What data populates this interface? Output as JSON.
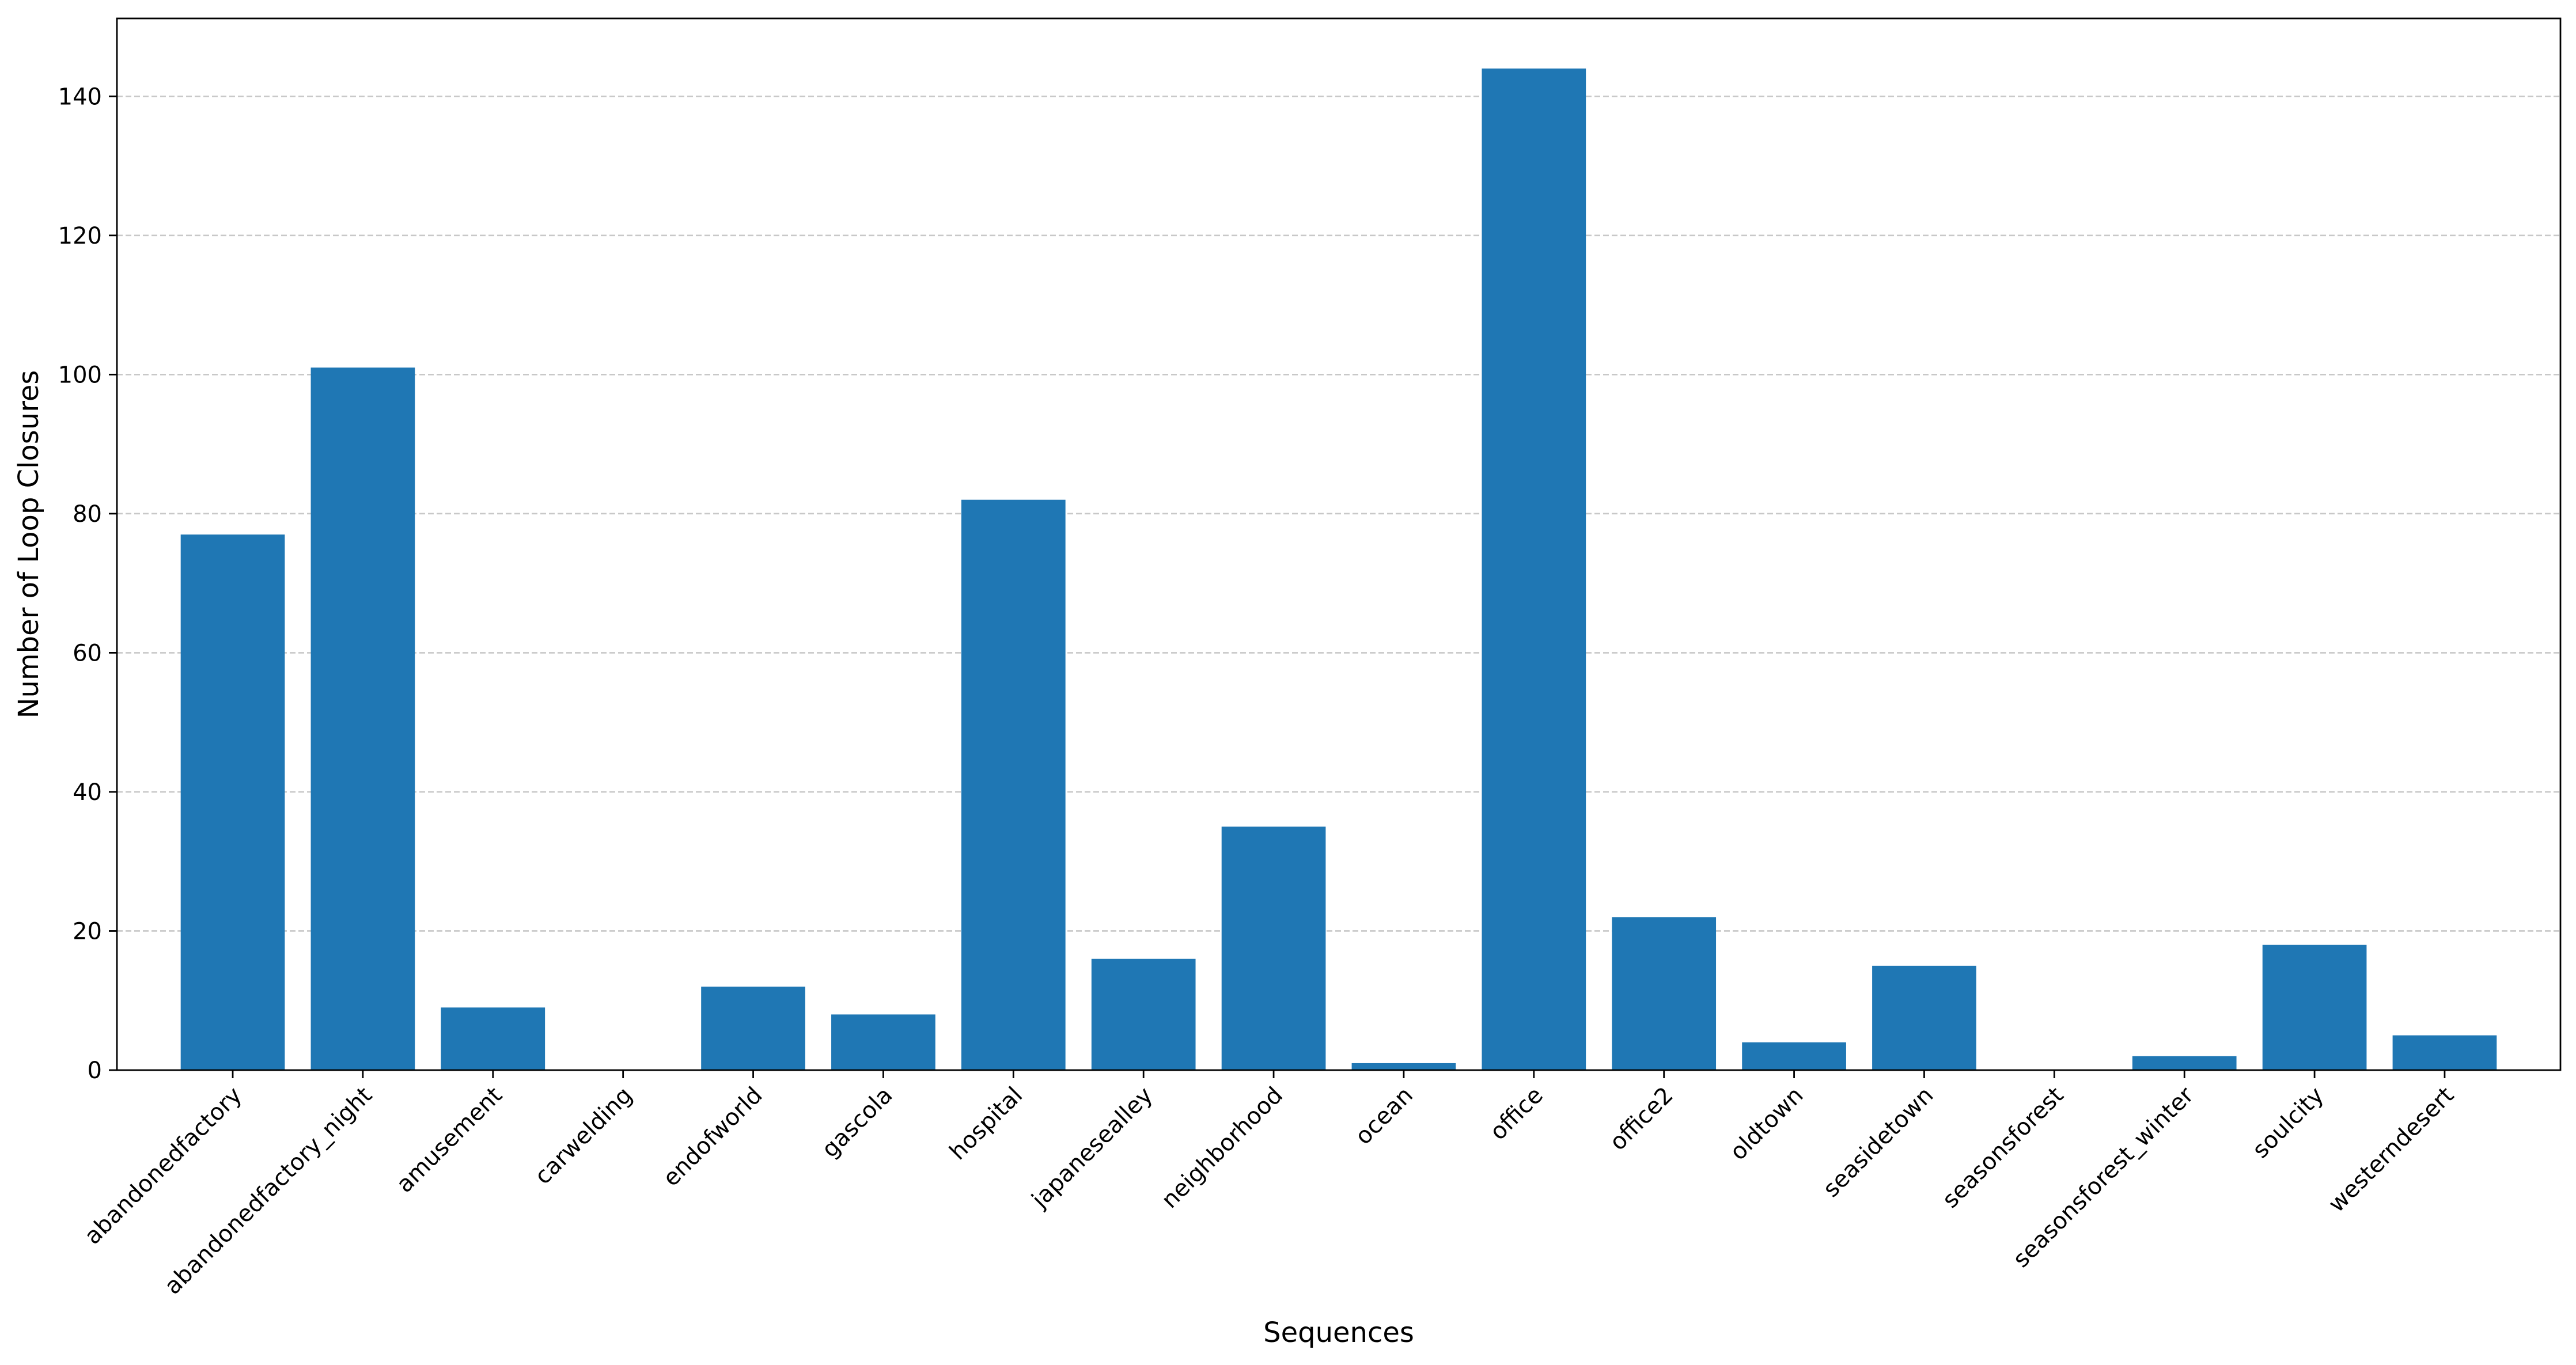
{
  "chart_data": {
    "type": "bar",
    "title": "",
    "xlabel": "Sequences",
    "ylabel": "Number of Loop Closures",
    "categories": [
      "abandonedfactory",
      "abandonedfactory_night",
      "amusement",
      "carwelding",
      "endofworld",
      "gascola",
      "hospital",
      "japanesealley",
      "neighborhood",
      "ocean",
      "office",
      "office2",
      "oldtown",
      "seasidetown",
      "seasonsforest",
      "seasonsforest_winter",
      "soulcity",
      "westerndesert"
    ],
    "values": [
      77,
      101,
      9,
      0,
      12,
      8,
      82,
      16,
      35,
      1,
      144,
      22,
      4,
      15,
      0,
      2,
      18,
      5
    ],
    "ylim": [
      0,
      151.2
    ],
    "yticks": [
      0,
      20,
      40,
      60,
      80,
      100,
      120,
      140
    ],
    "grid": "y-dashed",
    "legend": "none",
    "colors": {
      "bar": "#1f77b4",
      "grid": "#c8c8c8",
      "axis": "#000000"
    }
  }
}
